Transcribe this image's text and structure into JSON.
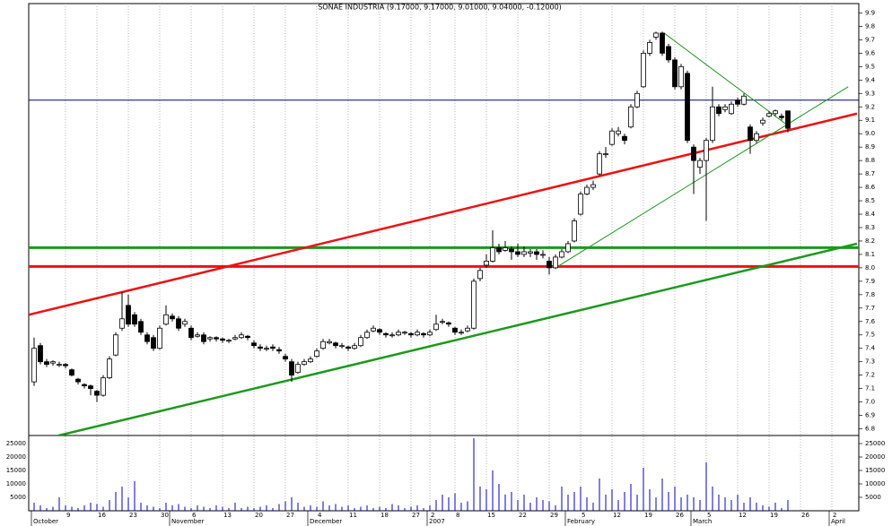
{
  "chart_data": {
    "type": "candlestick",
    "title": "SONAE INDUSTRIA (9.17000, 9.17000, 9.01000, 9.04000, -0.12000)",
    "categories": [
      null,
      null,
      null,
      null,
      null,
      "9",
      null,
      null,
      null,
      null,
      "16",
      null,
      null,
      null,
      null,
      "23",
      null,
      null,
      null,
      null,
      "30",
      null,
      null,
      null,
      null,
      "6",
      null,
      null,
      null,
      null,
      "13",
      null,
      null,
      null,
      null,
      "20",
      null,
      null,
      null,
      null,
      "27",
      null,
      null,
      null,
      null,
      "4",
      null,
      null,
      null,
      null,
      "11",
      null,
      null,
      null,
      null,
      "18",
      null,
      null,
      null,
      null,
      "27",
      null,
      null,
      "2",
      null,
      null,
      null,
      "8",
      null,
      null,
      null,
      null,
      "15",
      null,
      null,
      null,
      null,
      "22",
      null,
      null,
      null,
      null,
      "29",
      null,
      null,
      null,
      null,
      "5",
      null,
      null,
      null,
      null,
      "12",
      null,
      null,
      null,
      null,
      "19",
      null,
      null,
      null,
      null,
      "26",
      null,
      null,
      null,
      null,
      "5",
      null,
      null,
      null,
      null,
      "12",
      null,
      null,
      null,
      null,
      "19",
      null,
      null,
      null,
      null,
      "26",
      null,
      null,
      null,
      null,
      "2",
      null,
      null,
      null
    ],
    "months": [
      {
        "label": "October",
        "index": 0
      },
      {
        "label": "November",
        "index": 22
      },
      {
        "label": "December",
        "index": 44
      },
      {
        "label": "2007",
        "index": 63
      },
      {
        "label": "February",
        "index": 85
      },
      {
        "label": "March",
        "index": 105
      },
      {
        "label": "April",
        "index": 127
      }
    ],
    "ohlc": [
      [
        7.15,
        7.48,
        7.12,
        7.4
      ],
      [
        7.42,
        7.44,
        7.28,
        7.3
      ],
      [
        7.3,
        7.32,
        7.26,
        7.28
      ],
      [
        7.29,
        7.31,
        7.27,
        7.3
      ],
      [
        7.28,
        7.3,
        7.26,
        7.28
      ],
      [
        7.28,
        7.29,
        7.25,
        7.27
      ],
      [
        7.24,
        7.25,
        7.19,
        7.2
      ],
      [
        7.17,
        7.18,
        7.13,
        7.15
      ],
      [
        7.13,
        7.14,
        7.1,
        7.12
      ],
      [
        7.12,
        7.13,
        7.05,
        7.1
      ],
      [
        7.08,
        7.09,
        7.0,
        7.05
      ],
      [
        7.05,
        7.2,
        7.04,
        7.18
      ],
      [
        7.18,
        7.34,
        7.17,
        7.32
      ],
      [
        7.35,
        7.52,
        7.34,
        7.5
      ],
      [
        7.55,
        7.82,
        7.53,
        7.62
      ],
      [
        7.72,
        7.8,
        7.56,
        7.58
      ],
      [
        7.65,
        7.67,
        7.56,
        7.58
      ],
      [
        7.6,
        7.62,
        7.5,
        7.52
      ],
      [
        7.5,
        7.52,
        7.43,
        7.45
      ],
      [
        7.48,
        7.5,
        7.38,
        7.4
      ],
      [
        7.4,
        7.57,
        7.39,
        7.55
      ],
      [
        7.58,
        7.72,
        7.57,
        7.65
      ],
      [
        7.64,
        7.66,
        7.6,
        7.62
      ],
      [
        7.62,
        7.64,
        7.53,
        7.55
      ],
      [
        7.58,
        7.62,
        7.56,
        7.6
      ],
      [
        7.55,
        7.57,
        7.46,
        7.48
      ],
      [
        7.49,
        7.52,
        7.48,
        7.5
      ],
      [
        7.5,
        7.52,
        7.43,
        7.45
      ],
      [
        7.47,
        7.49,
        7.45,
        7.48
      ],
      [
        7.48,
        7.49,
        7.45,
        7.47
      ],
      [
        7.47,
        7.48,
        7.44,
        7.46
      ],
      [
        7.46,
        7.47,
        7.44,
        7.46
      ],
      [
        7.47,
        7.5,
        7.46,
        7.48
      ],
      [
        7.48,
        7.52,
        7.47,
        7.5
      ],
      [
        7.49,
        7.5,
        7.46,
        7.48
      ],
      [
        7.44,
        7.46,
        7.4,
        7.42
      ],
      [
        7.41,
        7.43,
        7.38,
        7.4
      ],
      [
        7.4,
        7.42,
        7.38,
        7.4
      ],
      [
        7.41,
        7.43,
        7.38,
        7.4
      ],
      [
        7.39,
        7.41,
        7.36,
        7.38
      ],
      [
        7.34,
        7.36,
        7.3,
        7.32
      ],
      [
        7.3,
        7.32,
        7.15,
        7.2
      ],
      [
        7.22,
        7.3,
        7.21,
        7.28
      ],
      [
        7.28,
        7.32,
        7.27,
        7.3
      ],
      [
        7.3,
        7.34,
        7.29,
        7.32
      ],
      [
        7.34,
        7.4,
        7.33,
        7.38
      ],
      [
        7.4,
        7.47,
        7.39,
        7.45
      ],
      [
        7.44,
        7.47,
        7.43,
        7.45
      ],
      [
        7.44,
        7.45,
        7.4,
        7.42
      ],
      [
        7.42,
        7.44,
        7.4,
        7.42
      ],
      [
        7.41,
        7.42,
        7.38,
        7.4
      ],
      [
        7.4,
        7.44,
        7.39,
        7.42
      ],
      [
        7.42,
        7.5,
        7.41,
        7.48
      ],
      [
        7.48,
        7.54,
        7.47,
        7.52
      ],
      [
        7.53,
        7.57,
        7.52,
        7.55
      ],
      [
        7.54,
        7.55,
        7.5,
        7.52
      ],
      [
        7.51,
        7.52,
        7.48,
        7.5
      ],
      [
        7.5,
        7.52,
        7.48,
        7.5
      ],
      [
        7.5,
        7.54,
        7.49,
        7.52
      ],
      [
        7.52,
        7.53,
        7.5,
        7.52
      ],
      [
        7.51,
        7.52,
        7.48,
        7.5
      ],
      [
        7.5,
        7.54,
        7.49,
        7.52
      ],
      [
        7.51,
        7.52,
        7.48,
        7.5
      ],
      [
        7.5,
        7.54,
        7.49,
        7.52
      ],
      [
        7.54,
        7.65,
        7.53,
        7.58
      ],
      [
        7.6,
        7.62,
        7.58,
        7.6
      ],
      [
        7.59,
        7.6,
        7.56,
        7.58
      ],
      [
        7.55,
        7.56,
        7.5,
        7.52
      ],
      [
        7.52,
        7.54,
        7.5,
        7.52
      ],
      [
        7.53,
        7.57,
        7.52,
        7.55
      ],
      [
        7.55,
        7.92,
        7.54,
        7.9
      ],
      [
        7.92,
        8.0,
        7.9,
        7.98
      ],
      [
        8.02,
        8.1,
        8.0,
        8.05
      ],
      [
        8.05,
        8.28,
        8.04,
        8.15
      ],
      [
        8.15,
        8.18,
        8.1,
        8.12
      ],
      [
        8.13,
        8.2,
        8.12,
        8.15
      ],
      [
        8.14,
        8.16,
        8.06,
        8.12
      ],
      [
        8.12,
        8.18,
        8.08,
        8.1
      ],
      [
        8.1,
        8.16,
        8.08,
        8.12
      ],
      [
        8.11,
        8.14,
        8.08,
        8.12
      ],
      [
        8.12,
        8.14,
        8.06,
        8.1
      ],
      [
        8.1,
        8.13,
        8.07,
        8.1
      ],
      [
        8.05,
        8.08,
        7.95,
        8.0
      ],
      [
        8.0,
        8.1,
        7.99,
        8.08
      ],
      [
        8.08,
        8.14,
        8.07,
        8.12
      ],
      [
        8.12,
        8.2,
        8.11,
        8.18
      ],
      [
        8.2,
        8.37,
        8.19,
        8.35
      ],
      [
        8.4,
        8.57,
        8.39,
        8.55
      ],
      [
        8.55,
        8.62,
        8.54,
        8.6
      ],
      [
        8.6,
        8.65,
        8.58,
        8.62
      ],
      [
        8.7,
        8.87,
        8.69,
        8.85
      ],
      [
        8.85,
        8.9,
        8.82,
        8.85
      ],
      [
        8.92,
        9.04,
        8.91,
        9.02
      ],
      [
        9.0,
        9.05,
        8.98,
        9.02
      ],
      [
        8.98,
        9.0,
        8.92,
        8.95
      ],
      [
        9.05,
        9.22,
        9.04,
        9.2
      ],
      [
        9.2,
        9.32,
        9.19,
        9.3
      ],
      [
        9.35,
        9.62,
        9.34,
        9.6
      ],
      [
        9.6,
        9.7,
        9.58,
        9.68
      ],
      [
        9.72,
        9.76,
        9.7,
        9.75
      ],
      [
        9.75,
        9.76,
        9.58,
        9.6
      ],
      [
        9.65,
        9.67,
        9.53,
        9.55
      ],
      [
        9.55,
        9.57,
        9.33,
        9.35
      ],
      [
        9.35,
        9.52,
        9.33,
        9.5
      ],
      [
        9.45,
        9.47,
        8.93,
        8.95
      ],
      [
        8.9,
        8.92,
        8.55,
        8.8
      ],
      [
        8.75,
        8.82,
        8.7,
        8.8
      ],
      [
        8.8,
        8.97,
        8.35,
        8.95
      ],
      [
        8.95,
        9.35,
        8.93,
        9.2
      ],
      [
        9.2,
        9.22,
        9.13,
        9.15
      ],
      [
        9.18,
        9.22,
        9.16,
        9.2
      ],
      [
        9.15,
        9.24,
        9.14,
        9.22
      ],
      [
        9.25,
        9.27,
        9.2,
        9.22
      ],
      [
        9.22,
        9.3,
        9.21,
        9.28
      ],
      [
        9.05,
        9.07,
        8.85,
        8.95
      ],
      [
        8.95,
        9.02,
        8.93,
        9.0
      ],
      [
        9.08,
        9.12,
        9.06,
        9.1
      ],
      [
        9.13,
        9.17,
        9.12,
        9.15
      ],
      [
        9.15,
        9.18,
        9.13,
        9.17
      ],
      [
        9.13,
        9.15,
        9.1,
        9.12
      ],
      [
        9.17,
        9.17,
        9.01,
        9.04
      ],
      null,
      null,
      null,
      null,
      null,
      null,
      null,
      null,
      null,
      null
    ],
    "volume": [
      3000,
      2000,
      1000,
      1500,
      5000,
      2000,
      1500,
      1000,
      2000,
      3000,
      2500,
      1500,
      4000,
      7000,
      9000,
      5000,
      11000,
      3000,
      2000,
      1500,
      1000,
      3000,
      2000,
      2500,
      1500,
      1000,
      2000,
      1500,
      1000,
      2000,
      1500,
      1000,
      3000,
      1000,
      1500,
      1000,
      1500,
      2000,
      1000,
      2500,
      3500,
      5000,
      3000,
      1500,
      2000,
      1500,
      3500,
      2000,
      2500,
      1500,
      2000,
      1000,
      1500,
      2000,
      1000,
      1500,
      1000,
      2500,
      2000,
      1000,
      1500,
      2000,
      1000,
      2000,
      4000,
      6000,
      5000,
      6500,
      3000,
      3500,
      27000,
      9000,
      8000,
      15000,
      10000,
      6000,
      7000,
      4000,
      6000,
      3000,
      5000,
      4000,
      3500,
      2000,
      9000,
      6000,
      7000,
      9000,
      5000,
      3000,
      12000,
      6000,
      8000,
      4000,
      7000,
      10000,
      6000,
      16000,
      8000,
      5000,
      12000,
      7000,
      9000,
      5000,
      6000,
      5000,
      4000,
      18000,
      9000,
      6000,
      5000,
      4000,
      6000,
      3000,
      5000,
      3000,
      2000,
      1500,
      3000,
      1000,
      4000,
      null,
      null,
      null,
      null,
      null,
      null,
      null,
      null,
      null,
      null
    ],
    "ylim": [
      6.75,
      9.97
    ],
    "yticks": [
      6.8,
      6.9,
      {
        "value": 7,
        "label": "7.0"
      },
      7.1,
      7.2,
      7.3,
      7.4,
      7.5,
      7.6,
      7.7,
      7.8,
      7.9,
      {
        "value": 8,
        "label": "8.0"
      },
      8.1,
      8.2,
      8.3,
      8.4,
      8.5,
      8.6,
      8.7,
      8.8,
      8.9,
      {
        "value": 9,
        "label": "9.0"
      },
      9.1,
      9.2,
      9.3,
      9.4,
      9.5,
      9.6,
      9.7,
      9.8,
      9.9
    ],
    "volume_ylim": [
      0,
      28000
    ],
    "volume_yticks": [
      5000,
      10000,
      15000,
      20000,
      25000
    ],
    "up_color": "#ffffff",
    "down_color": "#000000",
    "volume_color": "#0000cc",
    "grid": true,
    "levels": [
      {
        "value": 9.25,
        "color": "#000080",
        "width": 1
      },
      {
        "value": 8.15,
        "color": "#1a9a1a",
        "width": 3
      },
      {
        "value": 8.01,
        "color": "#ee1111",
        "width": 3
      }
    ],
    "trendlines": [
      {
        "color": "#ee1111",
        "width": 2.5,
        "from": [
          -0.86,
          7.65
        ],
        "to": [
          131,
          9.15
        ]
      },
      {
        "color": "#1a9a1a",
        "width": 2.5,
        "from": [
          3.9,
          6.75
        ],
        "to": [
          131,
          8.18
        ]
      },
      {
        "color": "#1a9a1a",
        "width": 1,
        "from": [
          83,
          8.0
        ],
        "to": [
          129.6,
          9.35
        ]
      },
      {
        "color": "#1a9a1a",
        "width": 1,
        "from": [
          100.3,
          9.75
        ],
        "to": [
          120.3,
          9.05
        ]
      }
    ]
  }
}
